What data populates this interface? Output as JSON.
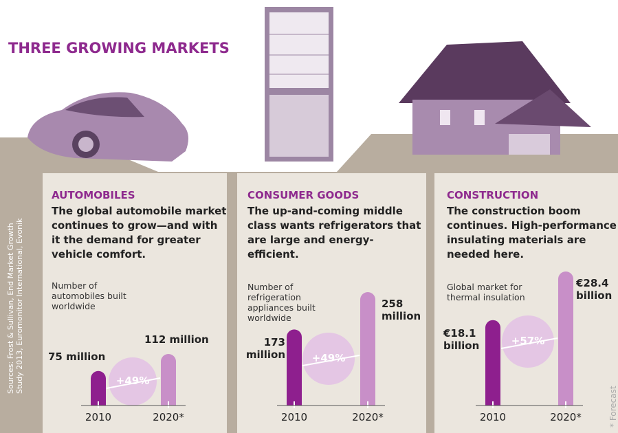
{
  "title": "THREE GROWING MARKETS",
  "sources": "Sources: Frost & Sullivan, End Market Growth Study 2013, Euromonitor International, Evonik",
  "footnote": "* Forecast",
  "chart_data": [
    {
      "type": "bar",
      "section": "AUTOMOBILES",
      "headline": "The global automobile market continues to grow—and with it the demand for greater vehicle comfort.",
      "title": "Number of automobiles built worldwide",
      "categories": [
        "2010",
        "2020*"
      ],
      "values": [
        75,
        112
      ],
      "value_labels": [
        "75 million",
        "112 million"
      ],
      "colors": [
        "#8e1f8e",
        "#c88fc8"
      ],
      "annotation": "+49%"
    },
    {
      "type": "bar",
      "section": "CONSUMER GOODS",
      "headline": "The up-and-coming middle class wants refrigerators that are large and energy-efficient.",
      "title": "Number of refrigeration appliances built worldwide",
      "categories": [
        "2010",
        "2020*"
      ],
      "values": [
        173,
        258
      ],
      "value_labels": [
        "173 million",
        "258 million"
      ],
      "colors": [
        "#8e1f8e",
        "#c88fc8"
      ],
      "annotation": "+49%"
    },
    {
      "type": "bar",
      "section": "CONSTRUCTION",
      "headline": "The construction boom continues. High-performance insulating materials are needed here.",
      "title": "Global market for thermal insulation",
      "categories": [
        "2010",
        "2020*"
      ],
      "values": [
        18.1,
        28.4
      ],
      "value_labels": [
        "€18.1 billion",
        "€28.4 billion"
      ],
      "colors": [
        "#8e1f8e",
        "#c88fc8"
      ],
      "annotation": "+57%"
    }
  ]
}
